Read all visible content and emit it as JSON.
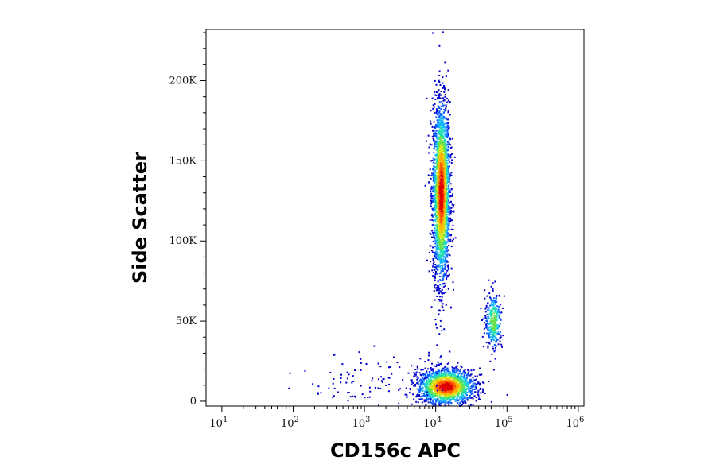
{
  "chart_data": {
    "type": "scatter",
    "subtype": "flow-cytometry-density-dot-plot",
    "title": "",
    "xlabel": "CD156c APC",
    "ylabel": "Side Scatter",
    "x_scale": "log",
    "y_scale": "linear",
    "xlim": [
      6,
      1200000
    ],
    "ylim": [
      -3000,
      232000
    ],
    "x_ticks": [
      {
        "value": 10,
        "base": "10",
        "exp": "1"
      },
      {
        "value": 100,
        "base": "10",
        "exp": "2"
      },
      {
        "value": 1000,
        "base": "10",
        "exp": "3"
      },
      {
        "value": 10000,
        "base": "10",
        "exp": "4"
      },
      {
        "value": 100000,
        "base": "10",
        "exp": "5"
      },
      {
        "value": 1000000,
        "base": "10",
        "exp": "6"
      }
    ],
    "y_ticks": [
      {
        "value": 0,
        "label": "0"
      },
      {
        "value": 50000,
        "label": "50K"
      },
      {
        "value": 100000,
        "label": "100K"
      },
      {
        "value": 150000,
        "label": "150K"
      },
      {
        "value": 200000,
        "label": "200K"
      }
    ],
    "grid": false,
    "legend": "none",
    "color_scale": [
      "#0000cc",
      "#0a5cff",
      "#16b5ff",
      "#22e0b0",
      "#6be04a",
      "#d8e61e",
      "#ffb000",
      "#ff5a00",
      "#e00000"
    ],
    "populations": [
      {
        "name": "",
        "x_center": 12000,
        "y_center": 130000,
        "x_log_spread": 0.06,
        "y_spread": 28000,
        "count": 2600,
        "peak_density": 1.0
      },
      {
        "name": "",
        "x_center": 14000,
        "y_center": 9000,
        "x_log_spread": 0.2,
        "y_spread": 5500,
        "count": 1700,
        "peak_density": 1.0
      },
      {
        "name": "",
        "x_center": 65000,
        "y_center": 50000,
        "x_log_spread": 0.06,
        "y_spread": 9000,
        "count": 300,
        "peak_density": 0.55
      },
      {
        "name": "",
        "x_center": 1500,
        "y_center": 12000,
        "x_log_spread": 0.55,
        "y_spread": 9000,
        "count": 120,
        "peak_density": 0.05
      }
    ]
  }
}
